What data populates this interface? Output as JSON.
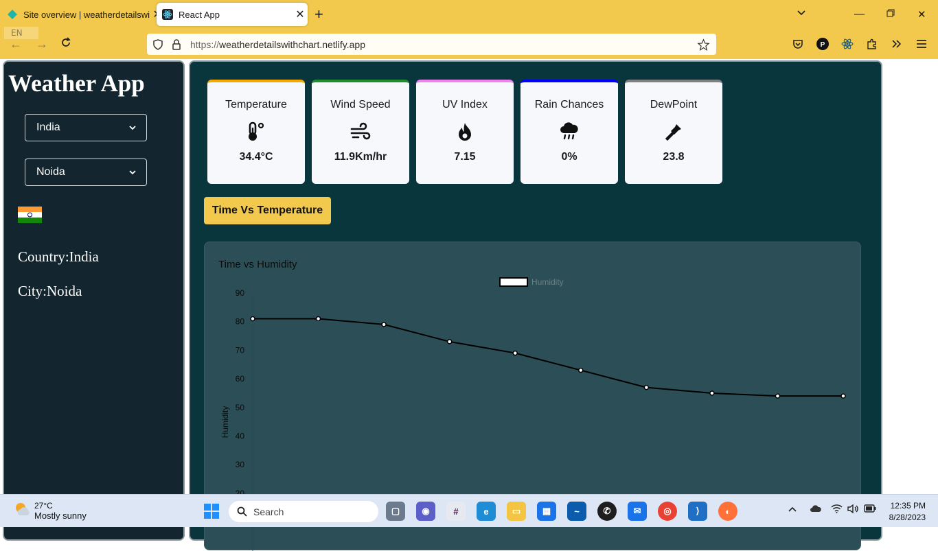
{
  "browser": {
    "tabs": [
      {
        "label": "Site overview | weatherdetailswi",
        "active": false
      },
      {
        "label": "React App",
        "active": true
      }
    ],
    "url_prefix": "https://",
    "url_host": "weatherdetailswithchart.netlify.app",
    "lang": "EN"
  },
  "sidebar": {
    "title": "Weather App",
    "country_select": "India",
    "city_select": "Noida",
    "country_text": "Country:India",
    "city_text": "City:Noida"
  },
  "cards": [
    {
      "label": "Temperature",
      "value": "34.4°C",
      "icon": "thermometer-icon",
      "color": "#f2a900"
    },
    {
      "label": "Wind Speed",
      "value": "11.9Km/hr",
      "icon": "wind-icon",
      "color": "#1f8f2e"
    },
    {
      "label": "UV Index",
      "value": "7.15",
      "icon": "fire-icon",
      "color": "#ee82ee"
    },
    {
      "label": "Rain Chances",
      "value": "0%",
      "icon": "rain-cloud-icon",
      "color": "#0000ff"
    },
    {
      "label": "DewPoint",
      "value": "23.8",
      "icon": "eyedropper-icon",
      "color": "#808080"
    }
  ],
  "toggle_button": "Time Vs Temperature",
  "chart_data": {
    "type": "line",
    "title": "Time vs Humidity",
    "ylabel": "Humidity",
    "ylim": [
      20,
      90
    ],
    "yticks": [
      90,
      80,
      70,
      60,
      50,
      40,
      30,
      20
    ],
    "series": [
      {
        "name": "Humidity",
        "values": [
          81,
          81,
          79,
          73,
          69,
          63,
          57,
          55,
          54,
          54
        ]
      }
    ],
    "grid": false,
    "legend": "top-center"
  },
  "taskbar": {
    "temp": "27°C",
    "condition": "Mostly sunny",
    "search_placeholder": "Search",
    "time": "12:35 PM",
    "date": "8/28/2023"
  }
}
